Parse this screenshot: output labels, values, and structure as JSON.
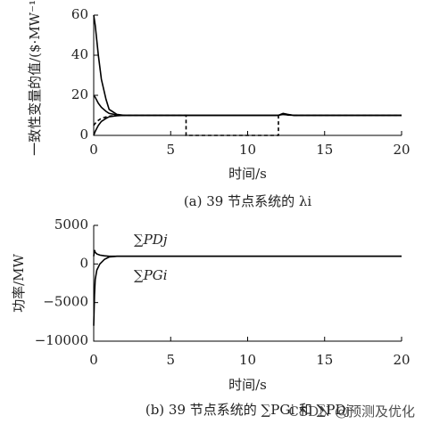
{
  "chart_data": [
    {
      "type": "line",
      "caption": "(a) 39 节点系统的 λi",
      "x_label": "时间/s",
      "y_label": "一致性变量的值/($·MW⁻¹)",
      "x": [
        0,
        0.1,
        0.3,
        0.5,
        0.8,
        1,
        1.5,
        2,
        3,
        6,
        6,
        12,
        12,
        12.3,
        12.6,
        13,
        20
      ],
      "series": [
        {
          "color": "#000000",
          "style": "solid",
          "values": [
            60,
            55,
            40,
            28,
            18,
            13,
            10.5,
            10,
            10,
            10,
            10,
            10,
            10,
            11,
            10.5,
            10,
            10
          ]
        },
        {
          "color": "#000000",
          "style": "solid",
          "values": [
            20,
            19,
            16,
            14,
            12,
            11,
            10.2,
            10,
            10,
            10,
            10,
            10,
            10,
            10.8,
            10.3,
            10,
            10
          ]
        },
        {
          "color": "#000000",
          "style": "solid",
          "values": [
            0,
            2,
            5,
            7,
            8.5,
            9.3,
            9.8,
            10,
            10,
            10,
            10,
            10,
            10,
            10.5,
            10.2,
            10,
            10
          ]
        },
        {
          "color": "#000000",
          "style": "dashed",
          "values": [
            5,
            6,
            7.5,
            8.5,
            9.2,
            9.6,
            9.9,
            10,
            10,
            10,
            0,
            0,
            10,
            10.5,
            10.2,
            10,
            10
          ]
        }
      ],
      "xlim": [
        0,
        20
      ],
      "ylim": [
        0,
        60
      ],
      "xticks": [
        0,
        5,
        10,
        15,
        20
      ],
      "yticks": [
        0,
        20,
        40,
        60
      ]
    },
    {
      "type": "line",
      "caption": "(b) 39 节点系统的 ∑PGi 和 ∑PDj",
      "watermark": "CSDN @预测及优化",
      "x_label": "时间/s",
      "y_label": "功率/MW",
      "x": [
        0,
        0.05,
        0.1,
        0.2,
        0.4,
        0.7,
        1,
        1.5,
        2,
        3,
        12,
        12.3,
        20
      ],
      "series": [
        {
          "name": "∑PDj",
          "color": "#000000",
          "label_color": "#3a7fc8",
          "style": "solid",
          "values": [
            1000,
            1800,
            1500,
            1300,
            1150,
            1050,
            1000,
            1000,
            1000,
            1000,
            1000,
            1000,
            1000
          ]
        },
        {
          "name": "∑PGi",
          "color": "#000000",
          "label_color": "#3a7fc8",
          "style": "solid",
          "values": [
            -8000,
            -4000,
            -2000,
            -800,
            0,
            600,
            900,
            1000,
            1000,
            1000,
            1000,
            1000,
            1000
          ]
        }
      ],
      "xlim": [
        0,
        20
      ],
      "ylim": [
        -10000,
        5000
      ],
      "xticks": [
        0,
        5,
        10,
        15,
        20
      ],
      "yticks": [
        5000,
        0,
        {
          "value": -5000,
          "label": "−5000"
        },
        {
          "value": -10000,
          "label": "−10000"
        }
      ]
    }
  ]
}
